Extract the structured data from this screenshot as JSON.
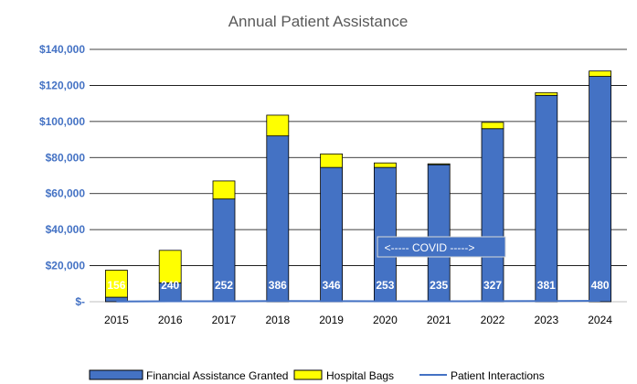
{
  "chart_data": {
    "type": "bar",
    "title": "Annual Patient Assistance",
    "xlabel": "",
    "ylabel": "",
    "categories": [
      "2015",
      "2016",
      "2017",
      "2018",
      "2019",
      "2020",
      "2021",
      "2022",
      "2023",
      "2024"
    ],
    "series": [
      {
        "name": "Financial Assistance Granted",
        "kind": "stacked-bar",
        "color": "#4472c4",
        "values": [
          2500,
          10500,
          57000,
          92000,
          74500,
          74500,
          76000,
          96000,
          114500,
          125000
        ]
      },
      {
        "name": "Hospital Bags",
        "kind": "stacked-bar",
        "color": "#ffff00",
        "values": [
          15000,
          18000,
          10000,
          11500,
          7500,
          2500,
          500,
          3500,
          1500,
          3000
        ]
      },
      {
        "name": "Patient Interactions",
        "kind": "line",
        "color": "#4472c4",
        "values": [
          156,
          240,
          252,
          386,
          346,
          253,
          235,
          327,
          381,
          480
        ],
        "labels": [
          "156",
          "240",
          "252",
          "386",
          "346",
          "253",
          "235",
          "327",
          "381",
          "480"
        ]
      }
    ],
    "ylim": [
      0,
      140000
    ],
    "yticks": [
      0,
      20000,
      40000,
      60000,
      80000,
      100000,
      120000,
      140000
    ],
    "ytick_labels": [
      "$-",
      "$20,000",
      "$40,000",
      "$60,000",
      "$80,000",
      "$100,000",
      "$120,000",
      "$140,000"
    ],
    "grid": true,
    "legend_position": "bottom",
    "annotation": {
      "text": "<----- COVID ----->"
    }
  }
}
